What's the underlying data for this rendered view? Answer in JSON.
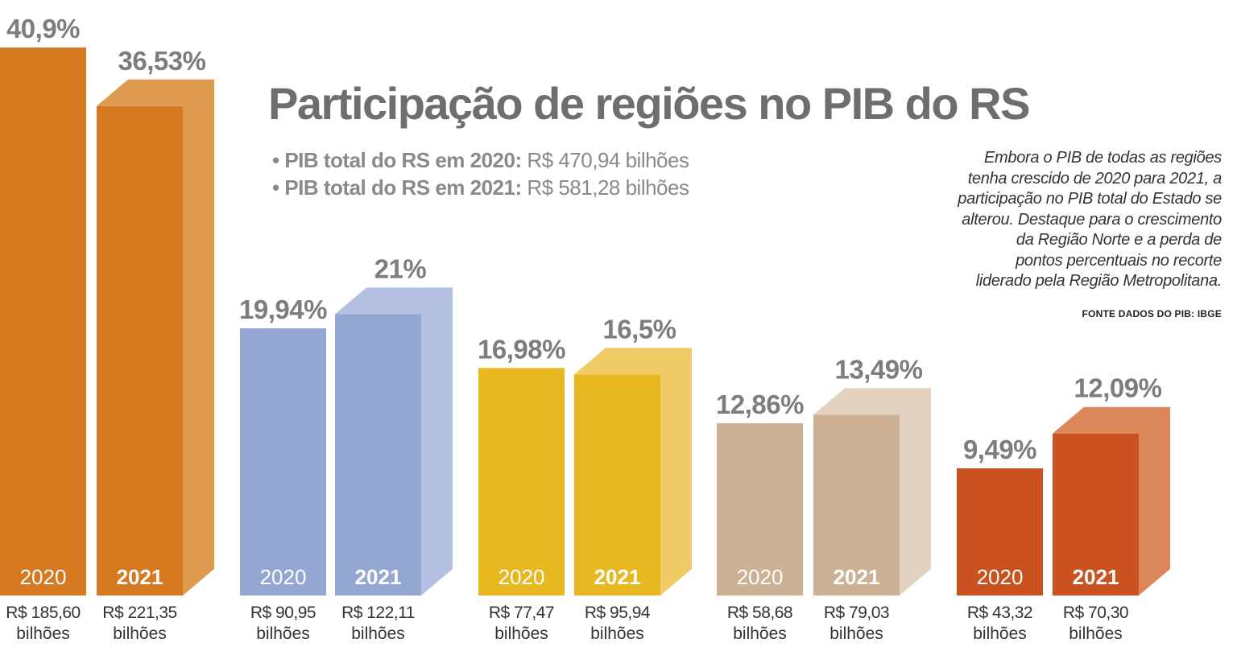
{
  "title": "Participação de regiões no PIB do RS",
  "bullets": [
    {
      "label": "• PIB total do RS em 2020:",
      "value": "R$ 470,94 bilhões"
    },
    {
      "label": "• PIB total do RS em 2021:",
      "value": "R$ 581,28 bilhões"
    }
  ],
  "note_lines": [
    "Embora o PIB de todas as regiões",
    "tenha crescido de 2020 para 2021, a",
    "participação no PIB total do Estado se",
    "alterou. Destaque para o crescimento",
    "da Região Norte e a perda de",
    "pontos percentuais no recorte",
    "liderado pela Região Metropolitana."
  ],
  "source": "FONTE DADOS DO PIB: IBGE",
  "chart_data": {
    "type": "bar",
    "title": "Participação de regiões no PIB do RS",
    "unit": "%",
    "ylim": [
      0,
      41
    ],
    "grid": false,
    "groups": [
      {
        "colors": {
          "main": "#d67a22",
          "side": "#e09a4e"
        },
        "bars": [
          {
            "year": "2020",
            "percent": 40.9,
            "percent_label": "40,9%",
            "value_label": "R$ 185,60",
            "unit_label": "bilhões"
          },
          {
            "year": "2021",
            "percent": 36.53,
            "percent_label": "36,53%",
            "value_label": "R$ 221,35",
            "unit_label": "bilhões"
          }
        ]
      },
      {
        "colors": {
          "main": "#94a7d3",
          "side": "#b4c0e2"
        },
        "bars": [
          {
            "year": "2020",
            "percent": 19.94,
            "percent_label": "19,94%",
            "value_label": "R$ 90,95",
            "unit_label": "bilhões"
          },
          {
            "year": "2021",
            "percent": 21,
            "percent_label": "21%",
            "value_label": "R$ 122,11",
            "unit_label": "bilhões"
          }
        ]
      },
      {
        "colors": {
          "main": "#e8b820",
          "side": "#f0cc66"
        },
        "bars": [
          {
            "year": "2020",
            "percent": 16.98,
            "percent_label": "16,98%",
            "value_label": "R$ 77,47",
            "unit_label": "bilhões"
          },
          {
            "year": "2021",
            "percent": 16.5,
            "percent_label": "16,5%",
            "value_label": "R$ 95,94",
            "unit_label": "bilhões"
          }
        ]
      },
      {
        "colors": {
          "main": "#cdb194",
          "side": "#e2d2bf"
        },
        "bars": [
          {
            "year": "2020",
            "percent": 12.86,
            "percent_label": "12,86%",
            "value_label": "R$ 58,68",
            "unit_label": "bilhões"
          },
          {
            "year": "2021",
            "percent": 13.49,
            "percent_label": "13,49%",
            "value_label": "R$ 79,03",
            "unit_label": "bilhões"
          }
        ]
      },
      {
        "colors": {
          "main": "#c95220",
          "side": "#db875a"
        },
        "bars": [
          {
            "year": "2020",
            "percent": 9.49,
            "percent_label": "9,49%",
            "value_label": "R$ 43,32",
            "unit_label": "bilhões"
          },
          {
            "year": "2021",
            "percent": 12.09,
            "percent_label": "12,09%",
            "value_label": "R$ 70,30",
            "unit_label": "bilhões"
          }
        ]
      }
    ]
  }
}
